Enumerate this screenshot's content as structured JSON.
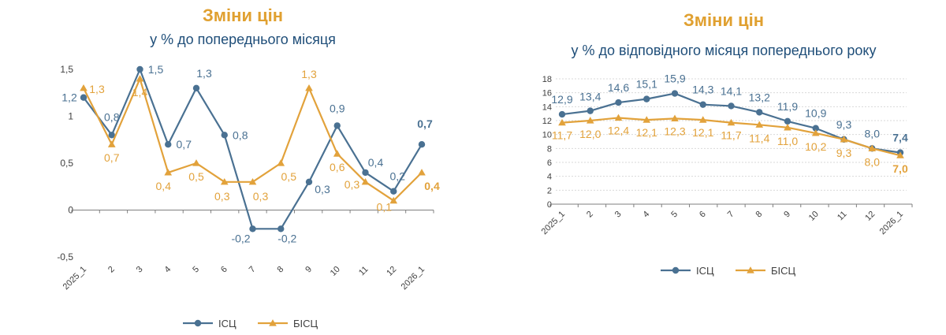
{
  "colors": {
    "isc": "#4a7192",
    "bisc": "#e2a23b",
    "title": "#e0a030",
    "subtitle": "#1f4e79"
  },
  "chart_data": [
    {
      "type": "line",
      "title": "Зміни цін",
      "subtitle": "у % до попереднього місяця",
      "categories": [
        "2025_1",
        "2",
        "3",
        "4",
        "5",
        "6",
        "7",
        "8",
        "9",
        "10",
        "11",
        "12",
        "2026_1"
      ],
      "ylim": [
        -0.5,
        1.5
      ],
      "yticks": [
        -0.5,
        0,
        0.5,
        1,
        1.5
      ],
      "ytick_labels": [
        "-0,5",
        "0",
        "0,5",
        "1",
        "1,5"
      ],
      "grid": false,
      "legend": "bottom",
      "series": [
        {
          "name": "ІСЦ",
          "marker": "circle",
          "color": "#4a7192",
          "values": [
            1.2,
            0.8,
            1.5,
            0.7,
            1.3,
            0.8,
            -0.2,
            -0.2,
            0.3,
            0.9,
            0.4,
            0.2,
            0.7
          ],
          "labels": [
            "1,2",
            "0,8",
            "1,5",
            "0,7",
            "1,3",
            "0,8",
            "-0,2",
            "-0,2",
            "0,3",
            "0,9",
            "0,4",
            "0,2",
            "0,7"
          ]
        },
        {
          "name": "БІСЦ",
          "marker": "triangle",
          "color": "#e2a23b",
          "values": [
            1.3,
            0.7,
            1.4,
            0.4,
            0.5,
            0.3,
            0.3,
            0.5,
            1.3,
            0.6,
            0.3,
            0.1,
            0.4
          ],
          "labels": [
            "1,3",
            "0,7",
            "1,4",
            "0,4",
            "0,5",
            "0,3",
            "0,3",
            "0,5",
            "1,3",
            "0,6",
            "0,3",
            "0,1",
            "0,4"
          ]
        }
      ]
    },
    {
      "type": "line",
      "title": "Зміни цін",
      "subtitle": "у % до відповідного місяця попереднього року",
      "categories": [
        "2025_1",
        "2",
        "3",
        "4",
        "5",
        "6",
        "7",
        "8",
        "9",
        "10",
        "11",
        "12",
        "2026_1"
      ],
      "ylim": [
        0,
        18
      ],
      "yticks": [
        0,
        2,
        4,
        6,
        8,
        10,
        12,
        14,
        16,
        18
      ],
      "ytick_labels": [
        "0",
        "2",
        "4",
        "6",
        "8",
        "10",
        "12",
        "14",
        "16",
        "18"
      ],
      "grid": true,
      "legend": "bottom",
      "series": [
        {
          "name": "ІСЦ",
          "marker": "circle",
          "color": "#4a7192",
          "values": [
            12.9,
            13.4,
            14.6,
            15.1,
            15.9,
            14.3,
            14.1,
            13.2,
            11.9,
            10.9,
            9.3,
            8.0,
            7.4
          ],
          "labels": [
            "12,9",
            "13,4",
            "14,6",
            "15,1",
            "15,9",
            "14,3",
            "14,1",
            "13,2",
            "11,9",
            "10,9",
            "9,3",
            "8,0",
            "7,4"
          ]
        },
        {
          "name": "БІСЦ",
          "marker": "triangle",
          "color": "#e2a23b",
          "values": [
            11.7,
            12.0,
            12.4,
            12.1,
            12.3,
            12.1,
            11.7,
            11.4,
            11.0,
            10.2,
            9.3,
            8.0,
            7.0
          ],
          "labels": [
            "11,7",
            "12,0",
            "12,4",
            "12,1",
            "12,3",
            "12,1",
            "11,7",
            "11,4",
            "11,0",
            "10,2",
            "9,3",
            "8,0",
            "7,0"
          ]
        }
      ]
    }
  ]
}
